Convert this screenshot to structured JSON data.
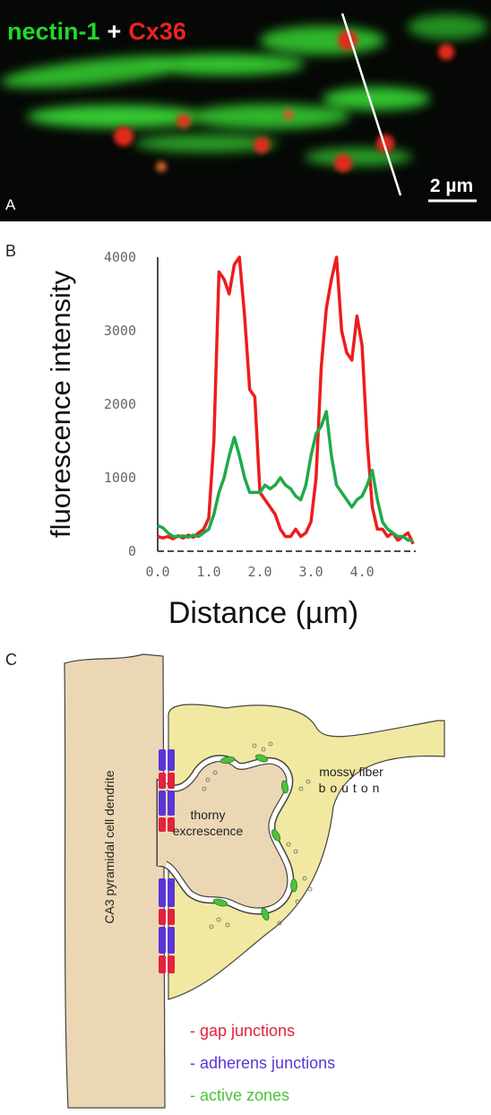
{
  "panel_a": {
    "label": "A",
    "stain_1": "nectin-1",
    "plus": "+",
    "stain_2": "Cx36",
    "scale_bar": "2 µm"
  },
  "panel_b_label": "B",
  "chart_data": {
    "type": "line",
    "y_label": "fluorescence intensity",
    "x_label": "Distance (µm)",
    "x": [
      0,
      0.1,
      0.2,
      0.3,
      0.4,
      0.5,
      0.6,
      0.7,
      0.8,
      0.9,
      1.0,
      1.1,
      1.2,
      1.3,
      1.4,
      1.5,
      1.6,
      1.7,
      1.8,
      1.9,
      2.0,
      2.1,
      2.2,
      2.3,
      2.4,
      2.5,
      2.6,
      2.7,
      2.8,
      2.9,
      3.0,
      3.1,
      3.2,
      3.3,
      3.4,
      3.5,
      3.6,
      3.7,
      3.8,
      3.9,
      4.0,
      4.1,
      4.2,
      4.3,
      4.4,
      4.5,
      4.6,
      4.7,
      4.8,
      4.9,
      5.0
    ],
    "series": [
      {
        "color": "#ee1c1c",
        "values": [
          200,
          180,
          200,
          170,
          210,
          180,
          220,
          190,
          250,
          300,
          450,
          1500,
          3800,
          3700,
          3500,
          3900,
          4000,
          3200,
          2200,
          2100,
          800,
          700,
          600,
          500,
          300,
          200,
          200,
          300,
          200,
          250,
          400,
          1000,
          2500,
          3300,
          3700,
          4000,
          3000,
          2700,
          2600,
          3200,
          2800,
          1500,
          600,
          300,
          300,
          200,
          250,
          150,
          200,
          250,
          100
        ]
      },
      {
        "color": "#1faa4a",
        "values": [
          350,
          320,
          250,
          200,
          200,
          210,
          190,
          220,
          200,
          250,
          300,
          500,
          800,
          1000,
          1300,
          1550,
          1300,
          1000,
          800,
          800,
          800,
          900,
          850,
          900,
          1000,
          900,
          850,
          750,
          700,
          900,
          1300,
          1600,
          1700,
          1900,
          1300,
          900,
          800,
          700,
          600,
          700,
          750,
          900,
          1100,
          700,
          400,
          300,
          250,
          200,
          200,
          150,
          150
        ]
      }
    ],
    "xlim": [
      0,
      5.05
    ],
    "ylim": [
      0,
      4000
    ],
    "xticks": [
      {
        "value": 0,
        "label": "0.0"
      },
      {
        "value": 1,
        "label": "1.0"
      },
      {
        "value": 2,
        "label": "2.0"
      },
      {
        "value": 3,
        "label": "3.0"
      },
      {
        "value": 4,
        "label": "4.0"
      }
    ],
    "yticks": [
      0,
      1000,
      2000,
      3000,
      4000
    ],
    "grid": false
  },
  "panel_c": {
    "label": "C",
    "dendrite": "CA3 pyramidal cell dendrite",
    "thorny_1": "thorny",
    "thorny_2": "excrescence",
    "bouton_1": "mossy fiber",
    "bouton_2": "bouton",
    "legend": [
      "- gap junctions",
      "- adherens junctions",
      "- active zones"
    ]
  }
}
